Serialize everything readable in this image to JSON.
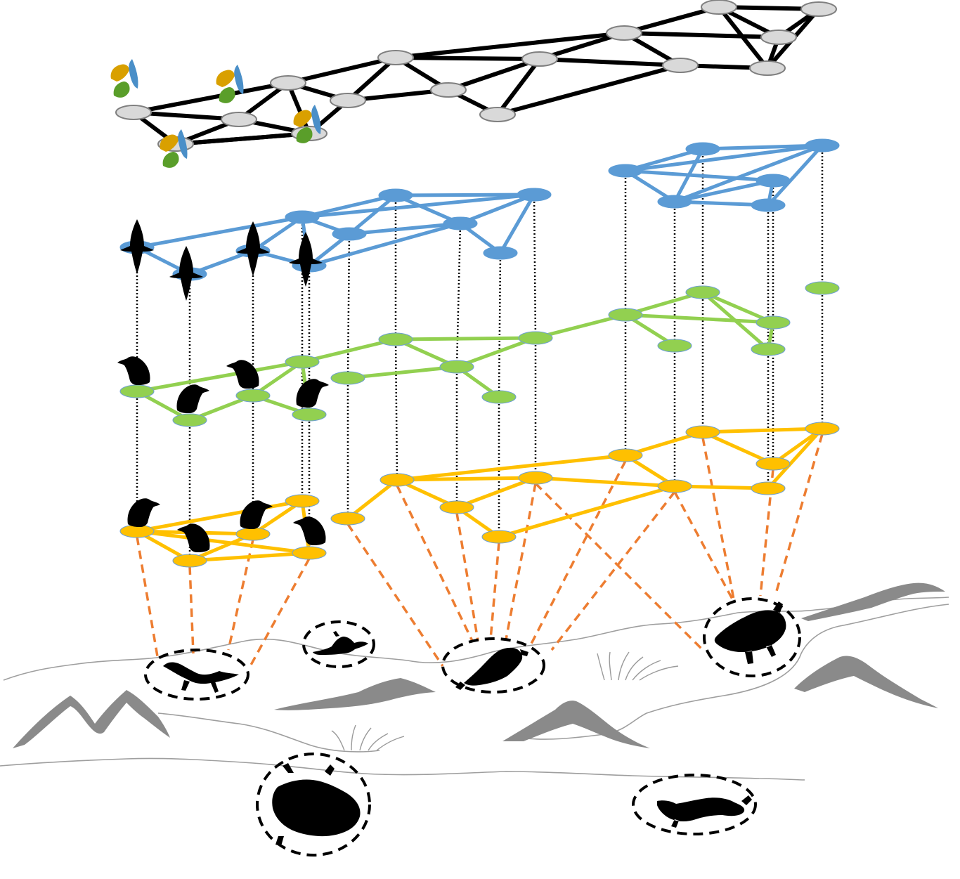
{
  "figure": {
    "description_visible_text": "",
    "layers": [
      {
        "id": "aggregate",
        "color": "#d9d9d9",
        "edge_color": "#000000"
      },
      {
        "id": "blue",
        "color": "#5b9bd5",
        "icon": "griffon-vulture-flying-icon"
      },
      {
        "id": "green",
        "color": "#92d050",
        "icon": "cinereous-vulture-perched-icon"
      },
      {
        "id": "yellow",
        "color": "#ffc000",
        "icon": "egyptian-vulture-perched-icon"
      }
    ],
    "link_colors": {
      "interlayer": "#000000",
      "feeding": "#ed7d31"
    },
    "carcass_icons": [
      "wild-boar-carcass-icon",
      "deer-carcass-icon",
      "cow-carcass-icon",
      "bull-carcass-icon",
      "sheep-carcass-icon",
      "goat-carcass-icon"
    ]
  }
}
